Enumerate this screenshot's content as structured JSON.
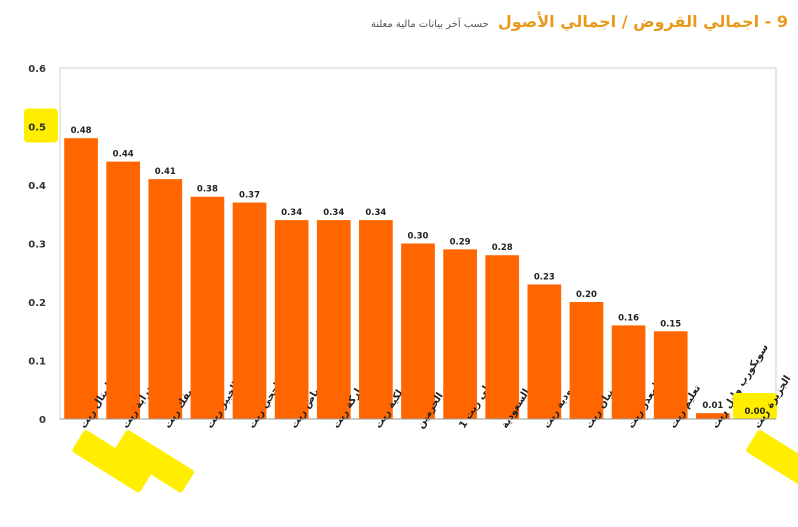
{
  "header": {
    "title": "9 - اجمالي القروض / اجمالي الأصول",
    "subtitle": "حسب آخر بيانات مالية معلنة"
  },
  "colors": {
    "bar": "#ff6600",
    "title": "#e99a1c",
    "highlight": "#ffee00"
  },
  "chart_data": {
    "type": "bar",
    "categories": [
      "سدكو كابيتال ريت",
      "دراية ريت",
      "ميفك ريت",
      "الخبير ريت",
      "الراجحي ريت",
      "الرياض ريت",
      "مشاركة ريت",
      "ملكية ريت",
      "جدوى ريت الحرمين",
      "الأهلي ريت 1",
      "جدوى ريت السعودية",
      "سكو السعودية ريت",
      "بنيان ريت",
      "المعذر ريت",
      "تعليم ريت",
      "سويكورب وابل ريت",
      "الجزيرة ريت"
    ],
    "values": [
      0.48,
      0.44,
      0.41,
      0.38,
      0.37,
      0.34,
      0.34,
      0.34,
      0.3,
      0.29,
      0.28,
      0.23,
      0.2,
      0.16,
      0.15,
      0.01,
      0.0
    ],
    "labels": [
      "0.48",
      "0.44",
      "0.41",
      "0.38",
      "0.37",
      "0.34",
      "0.34",
      "0.34",
      "0.30",
      "0.29",
      "0.28",
      "0.23",
      "0.20",
      "0.16",
      "0.15",
      "0.01",
      "0.00"
    ],
    "yticks": [
      "0",
      "0.1",
      "0.2",
      "0.3",
      "0.4",
      "0.5",
      "0.6"
    ],
    "ylim": [
      0,
      0.6
    ],
    "grid": false,
    "highlighted_ticks": [
      "0.5"
    ],
    "highlighted_categories": [
      "سدكو كابيتال ريت",
      "دراية ريت",
      "الجزيرة ريت"
    ],
    "highlighted_labels": [
      "0.00"
    ]
  }
}
